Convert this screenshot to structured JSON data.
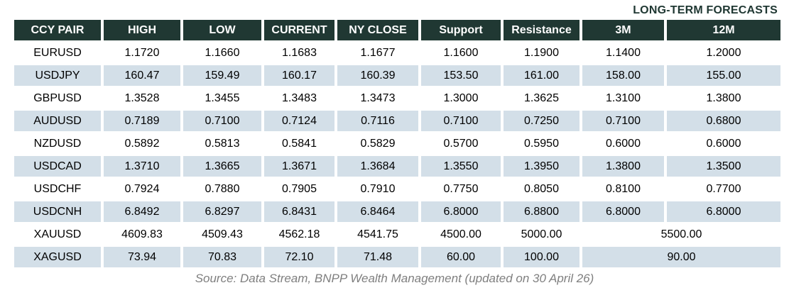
{
  "title": "LONG-TERM FORECASTS",
  "footer": "Source: Data Stream, BNPP Wealth Management (updated on 30 April 26)",
  "colors": {
    "header_bg": "#203833",
    "header_text": "#ffffff",
    "row_stripe": "#d3dfe8",
    "title_text": "#1f3732",
    "source_text": "#7f7f7f"
  },
  "table": {
    "columns": [
      "CCY PAIR",
      "HIGH",
      "LOW",
      "CURRENT",
      "NY CLOSE",
      "Support",
      "Resistance",
      "3M",
      "12M"
    ],
    "rows": [
      {
        "pair": "EURUSD",
        "values": [
          "1.1720",
          "1.1660",
          "1.1683",
          "1.1677",
          "1.1600",
          "1.1900",
          "1.1400",
          "1.2000"
        ],
        "merged_3m_12m": null,
        "shaded": false
      },
      {
        "pair": "USDJPY",
        "values": [
          "160.47",
          "159.49",
          "160.17",
          "160.39",
          "153.50",
          "161.00",
          "158.00",
          "155.00"
        ],
        "merged_3m_12m": null,
        "shaded": true
      },
      {
        "pair": "GBPUSD",
        "values": [
          "1.3528",
          "1.3455",
          "1.3483",
          "1.3473",
          "1.3000",
          "1.3625",
          "1.3100",
          "1.3800"
        ],
        "merged_3m_12m": null,
        "shaded": false
      },
      {
        "pair": "AUDUSD",
        "values": [
          "0.7189",
          "0.7100",
          "0.7124",
          "0.7116",
          "0.7100",
          "0.7250",
          "0.7100",
          "0.6800"
        ],
        "merged_3m_12m": null,
        "shaded": true
      },
      {
        "pair": "NZDUSD",
        "values": [
          "0.5892",
          "0.5813",
          "0.5841",
          "0.5829",
          "0.5700",
          "0.5950",
          "0.6000",
          "0.6000"
        ],
        "merged_3m_12m": null,
        "shaded": false
      },
      {
        "pair": "USDCAD",
        "values": [
          "1.3710",
          "1.3665",
          "1.3671",
          "1.3684",
          "1.3550",
          "1.3950",
          "1.3800",
          "1.3500"
        ],
        "merged_3m_12m": null,
        "shaded": true
      },
      {
        "pair": "USDCHF",
        "values": [
          "0.7924",
          "0.7880",
          "0.7905",
          "0.7910",
          "0.7750",
          "0.8050",
          "0.8100",
          "0.7700"
        ],
        "merged_3m_12m": null,
        "shaded": false
      },
      {
        "pair": "USDCNH",
        "values": [
          "6.8492",
          "6.8297",
          "6.8431",
          "6.8464",
          "6.8000",
          "6.8800",
          "6.8000",
          "6.8000"
        ],
        "merged_3m_12m": null,
        "shaded": true
      },
      {
        "pair": "XAUUSD",
        "values": [
          "4609.83",
          "4509.43",
          "4562.18",
          "4541.75",
          "4500.00",
          "5000.00"
        ],
        "merged_3m_12m": "5500.00",
        "shaded": false
      },
      {
        "pair": "XAGUSD",
        "values": [
          "73.94",
          "70.83",
          "72.10",
          "71.48",
          "60.00",
          "100.00"
        ],
        "merged_3m_12m": "90.00",
        "shaded": true
      }
    ]
  },
  "chart_data": {
    "type": "table",
    "title": "LONG-TERM FORECASTS",
    "columns": [
      "CCY PAIR",
      "HIGH",
      "LOW",
      "CURRENT",
      "NY CLOSE",
      "Support",
      "Resistance",
      "3M",
      "12M"
    ],
    "rows": [
      [
        "EURUSD",
        1.172,
        1.166,
        1.1683,
        1.1677,
        1.16,
        1.19,
        1.14,
        1.2
      ],
      [
        "USDJPY",
        160.47,
        159.49,
        160.17,
        160.39,
        153.5,
        161.0,
        158.0,
        155.0
      ],
      [
        "GBPUSD",
        1.3528,
        1.3455,
        1.3483,
        1.3473,
        1.3,
        1.3625,
        1.31,
        1.38
      ],
      [
        "AUDUSD",
        0.7189,
        0.71,
        0.7124,
        0.7116,
        0.71,
        0.725,
        0.71,
        0.68
      ],
      [
        "NZDUSD",
        0.5892,
        0.5813,
        0.5841,
        0.5829,
        0.57,
        0.595,
        0.6,
        0.6
      ],
      [
        "USDCAD",
        1.371,
        1.3665,
        1.3671,
        1.3684,
        1.355,
        1.395,
        1.38,
        1.35
      ],
      [
        "USDCHF",
        0.7924,
        0.788,
        0.7905,
        0.791,
        0.775,
        0.805,
        0.81,
        0.77
      ],
      [
        "USDCNH",
        6.8492,
        6.8297,
        6.8431,
        6.8464,
        6.8,
        6.88,
        6.8,
        6.8
      ],
      [
        "XAUUSD",
        4609.83,
        4509.43,
        4562.18,
        4541.75,
        4500.0,
        5000.0,
        5500.0,
        5500.0
      ],
      [
        "XAGUSD",
        73.94,
        70.83,
        72.1,
        71.48,
        60.0,
        100.0,
        90.0,
        90.0
      ]
    ],
    "notes": "For XAUUSD and XAGUSD the 3M and 12M forecast columns are merged into a single value (5500.00 and 90.00 respectively). Shaded zebra stripes on USDJPY, AUDUSD, USDCAD, USDCNH, XAGUSD rows.",
    "source": "Source: Data Stream, BNPP Wealth Management (updated on 30 April 26)"
  }
}
